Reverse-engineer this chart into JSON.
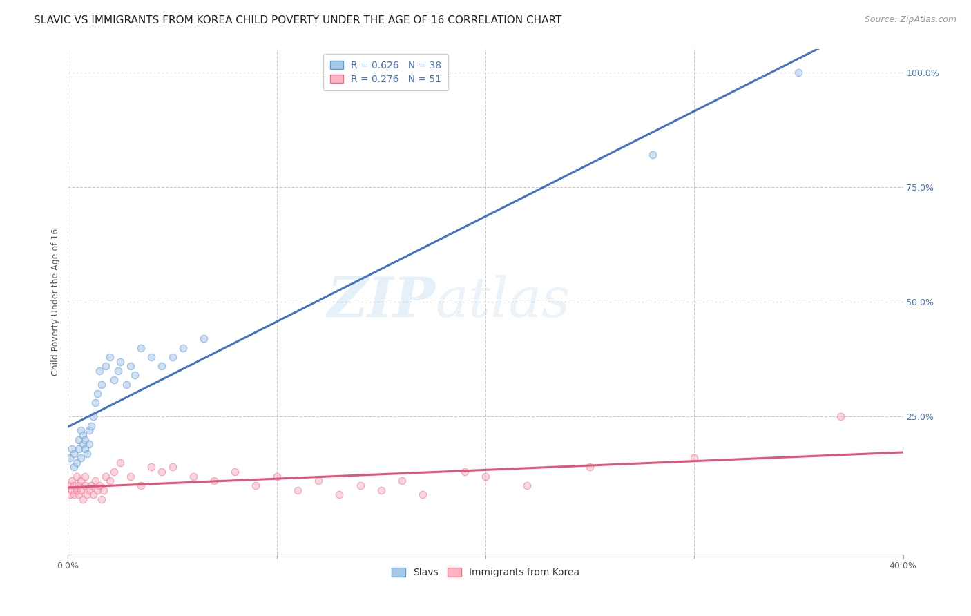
{
  "title": "SLAVIC VS IMMIGRANTS FROM KOREA CHILD POVERTY UNDER THE AGE OF 16 CORRELATION CHART",
  "source": "Source: ZipAtlas.com",
  "ylabel": "Child Poverty Under the Age of 16",
  "xlim": [
    0.0,
    0.4
  ],
  "ylim": [
    -0.05,
    1.05
  ],
  "xtick_labels": [
    "0.0%",
    "",
    "",
    "",
    "40.0%"
  ],
  "xtick_vals": [
    0.0,
    0.1,
    0.2,
    0.3,
    0.4
  ],
  "ytick_labels": [
    "25.0%",
    "50.0%",
    "75.0%",
    "100.0%"
  ],
  "ytick_vals": [
    0.25,
    0.5,
    0.75,
    1.0
  ],
  "slavic_color": "#a8c8e8",
  "slavic_edge": "#5b9bd5",
  "korea_color": "#ffb3c1",
  "korea_edge": "#e87090",
  "slavic_R": 0.626,
  "slavic_N": 38,
  "korea_R": 0.276,
  "korea_N": 51,
  "legend_label_1": "Slavs",
  "legend_label_2": "Immigrants from Korea",
  "watermark_zip": "ZIP",
  "watermark_atlas": "atlas",
  "slavic_x": [
    0.001,
    0.002,
    0.003,
    0.003,
    0.004,
    0.005,
    0.005,
    0.006,
    0.006,
    0.007,
    0.007,
    0.008,
    0.008,
    0.009,
    0.01,
    0.01,
    0.011,
    0.012,
    0.013,
    0.014,
    0.015,
    0.016,
    0.018,
    0.02,
    0.022,
    0.024,
    0.025,
    0.028,
    0.03,
    0.032,
    0.035,
    0.04,
    0.045,
    0.05,
    0.055,
    0.065,
    0.28,
    0.35
  ],
  "slavic_y": [
    0.16,
    0.18,
    0.14,
    0.17,
    0.15,
    0.18,
    0.2,
    0.16,
    0.22,
    0.19,
    0.21,
    0.18,
    0.2,
    0.17,
    0.22,
    0.19,
    0.23,
    0.25,
    0.28,
    0.3,
    0.35,
    0.32,
    0.36,
    0.38,
    0.33,
    0.35,
    0.37,
    0.32,
    0.36,
    0.34,
    0.4,
    0.38,
    0.36,
    0.38,
    0.4,
    0.42,
    0.82,
    1.0
  ],
  "korea_x": [
    0.001,
    0.001,
    0.002,
    0.002,
    0.003,
    0.003,
    0.004,
    0.004,
    0.005,
    0.005,
    0.006,
    0.006,
    0.007,
    0.008,
    0.008,
    0.009,
    0.01,
    0.011,
    0.012,
    0.013,
    0.014,
    0.015,
    0.016,
    0.017,
    0.018,
    0.02,
    0.022,
    0.025,
    0.03,
    0.035,
    0.04,
    0.045,
    0.05,
    0.06,
    0.07,
    0.08,
    0.09,
    0.1,
    0.11,
    0.12,
    0.13,
    0.14,
    0.15,
    0.16,
    0.17,
    0.19,
    0.2,
    0.22,
    0.25,
    0.3,
    0.37
  ],
  "korea_y": [
    0.08,
    0.1,
    0.09,
    0.11,
    0.08,
    0.1,
    0.09,
    0.12,
    0.1,
    0.08,
    0.11,
    0.09,
    0.07,
    0.1,
    0.12,
    0.08,
    0.09,
    0.1,
    0.08,
    0.11,
    0.09,
    0.1,
    0.07,
    0.09,
    0.12,
    0.11,
    0.13,
    0.15,
    0.12,
    0.1,
    0.14,
    0.13,
    0.14,
    0.12,
    0.11,
    0.13,
    0.1,
    0.12,
    0.09,
    0.11,
    0.08,
    0.1,
    0.09,
    0.11,
    0.08,
    0.13,
    0.12,
    0.1,
    0.14,
    0.16,
    0.25
  ],
  "title_fontsize": 11,
  "axis_label_fontsize": 9,
  "tick_fontsize": 9,
  "legend_fontsize": 10,
  "source_fontsize": 9,
  "marker_size": 55,
  "marker_alpha": 0.55,
  "line_width": 2.2,
  "slavic_line_color": "#4472c4",
  "korea_line_color": "#e05578",
  "grid_color": "#cccccc",
  "background_color": "#ffffff",
  "tick_color_y": "#4472c4",
  "tick_color_x": "#666666"
}
